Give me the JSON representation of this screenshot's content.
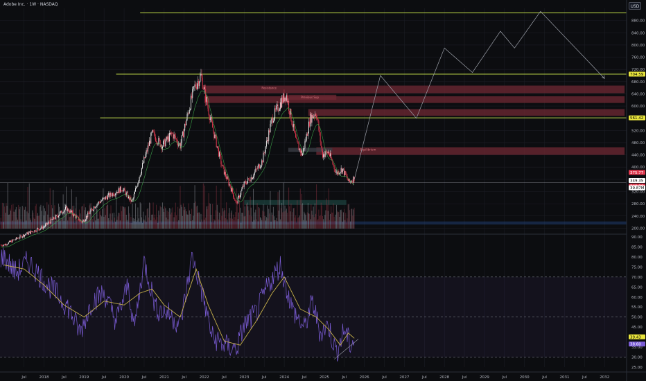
{
  "header": {
    "title": "Adobe Inc. · 1W · NASDAQ",
    "currency_button": "USD"
  },
  "colors": {
    "background": "#0c0d10",
    "grid": "#1b1d24",
    "up": "#e6e6e6",
    "down": "#e0384e",
    "level_line": "#c9e64b",
    "zone": "#6f2833",
    "demand_zone": "#1f4d48",
    "ma_line": "#3fae4c",
    "rsi_line": "#7b5cd6",
    "rsi_ma": "#c8b24a",
    "projection": "#9fa3ac"
  },
  "chart_data": [
    {
      "type": "candlestick",
      "title": "Adobe Inc. · 1W · NASDAQ",
      "ylim": [
        185,
        920
      ],
      "y_ticks": [
        200,
        240,
        280,
        320,
        360,
        400,
        440,
        480,
        520,
        560,
        600,
        640,
        680,
        720,
        760,
        800,
        840,
        880
      ],
      "price_path": [
        {
          "t": 2017.0,
          "p": 145
        },
        {
          "t": 2017.5,
          "p": 178
        },
        {
          "t": 2018.0,
          "p": 205
        },
        {
          "t": 2018.55,
          "p": 265
        },
        {
          "t": 2018.95,
          "p": 220
        },
        {
          "t": 2019.3,
          "p": 278
        },
        {
          "t": 2019.6,
          "p": 305
        },
        {
          "t": 2019.95,
          "p": 330
        },
        {
          "t": 2020.2,
          "p": 285
        },
        {
          "t": 2020.4,
          "p": 380
        },
        {
          "t": 2020.7,
          "p": 510
        },
        {
          "t": 2020.95,
          "p": 470
        },
        {
          "t": 2021.2,
          "p": 510
        },
        {
          "t": 2021.4,
          "p": 470
        },
        {
          "t": 2021.75,
          "p": 660
        },
        {
          "t": 2021.92,
          "p": 699
        },
        {
          "t": 2022.15,
          "p": 560
        },
        {
          "t": 2022.45,
          "p": 400
        },
        {
          "t": 2022.7,
          "p": 320
        },
        {
          "t": 2022.8,
          "p": 280
        },
        {
          "t": 2023.0,
          "p": 345
        },
        {
          "t": 2023.2,
          "p": 370
        },
        {
          "t": 2023.45,
          "p": 420
        },
        {
          "t": 2023.7,
          "p": 560
        },
        {
          "t": 2023.95,
          "p": 620
        },
        {
          "t": 2024.05,
          "p": 638
        },
        {
          "t": 2024.3,
          "p": 480
        },
        {
          "t": 2024.45,
          "p": 440
        },
        {
          "t": 2024.65,
          "p": 560
        },
        {
          "t": 2024.8,
          "p": 580
        },
        {
          "t": 2024.95,
          "p": 440
        },
        {
          "t": 2025.1,
          "p": 450
        },
        {
          "t": 2025.3,
          "p": 380
        },
        {
          "t": 2025.45,
          "p": 395
        },
        {
          "t": 2025.62,
          "p": 349
        },
        {
          "t": 2025.75,
          "p": 365
        }
      ],
      "horizontal_levels": [
        {
          "price": 905,
          "label": ""
        },
        {
          "price": 704.59,
          "label": "704.59"
        },
        {
          "price": 561.42,
          "label": "561.42"
        },
        {
          "price": 349.35,
          "label": ""
        }
      ],
      "zones": [
        {
          "from": 2022.0,
          "to": 2032.5,
          "top": 667,
          "bottom": 642,
          "label": "Resistance"
        },
        {
          "from": 2022.0,
          "to": 2032.5,
          "top": 632,
          "bottom": 610,
          "label": ""
        },
        {
          "from": 2024.1,
          "to": 2025.3,
          "top": 637,
          "bottom": 620,
          "label": "Previous Sup"
        },
        {
          "from": 2024.6,
          "to": 2032.5,
          "top": 590,
          "bottom": 568,
          "label": ""
        },
        {
          "from": 2024.8,
          "to": 2032.5,
          "top": 465,
          "bottom": 440,
          "label": "Equilibrium"
        },
        {
          "from": 2024.1,
          "to": 2025.2,
          "top": 463,
          "bottom": 450,
          "label": ""
        }
      ],
      "projection_path": [
        {
          "t": 2025.75,
          "p": 360
        },
        {
          "t": 2026.4,
          "p": 700
        },
        {
          "t": 2027.3,
          "p": 560
        },
        {
          "t": 2028.0,
          "p": 790
        },
        {
          "t": 2028.7,
          "p": 710
        },
        {
          "t": 2029.4,
          "p": 845
        },
        {
          "t": 2029.75,
          "p": 790
        },
        {
          "t": 2030.4,
          "p": 910
        },
        {
          "t": 2032.0,
          "p": 690
        }
      ],
      "price_labels": [
        {
          "price": 704.59,
          "text": "704.59",
          "bg": "#e8e43c",
          "fg": "#000000"
        },
        {
          "price": 561.42,
          "text": "561.42",
          "bg": "#e8e43c",
          "fg": "#000000"
        },
        {
          "price": 375.77,
          "text": "375.77",
          "bg": "#e0384e",
          "fg": "#ffffff"
        },
        {
          "price": 349.35,
          "text": "349.35",
          "bg": "#ffffff",
          "fg": "#000000"
        },
        {
          "price": 349.36,
          "text": "349.36",
          "bg": "#e0384e",
          "fg": "#ffffff"
        },
        {
          "price": 300,
          "text": "39.87M",
          "bg": "#ffffff",
          "fg": "#000000"
        }
      ]
    },
    {
      "type": "line",
      "title": "",
      "ylim": [
        25,
        90
      ],
      "y_ticks": [
        25,
        30,
        35,
        40,
        45,
        50,
        55,
        60,
        65,
        70,
        75,
        80,
        85,
        90
      ],
      "overbought": 70,
      "middle": 50,
      "oversold": 30,
      "rsi_path": [
        {
          "t": 2017.0,
          "v": 80
        },
        {
          "t": 2017.3,
          "v": 72
        },
        {
          "t": 2017.6,
          "v": 78
        },
        {
          "t": 2018.0,
          "v": 68
        },
        {
          "t": 2018.3,
          "v": 62
        },
        {
          "t": 2018.6,
          "v": 55
        },
        {
          "t": 2018.9,
          "v": 42
        },
        {
          "t": 2019.2,
          "v": 58
        },
        {
          "t": 2019.5,
          "v": 62
        },
        {
          "t": 2019.8,
          "v": 48
        },
        {
          "t": 2020.1,
          "v": 66
        },
        {
          "t": 2020.25,
          "v": 44
        },
        {
          "t": 2020.5,
          "v": 78
        },
        {
          "t": 2020.8,
          "v": 54
        },
        {
          "t": 2021.1,
          "v": 52
        },
        {
          "t": 2021.4,
          "v": 46
        },
        {
          "t": 2021.7,
          "v": 80
        },
        {
          "t": 2021.9,
          "v": 66
        },
        {
          "t": 2022.2,
          "v": 40
        },
        {
          "t": 2022.5,
          "v": 36
        },
        {
          "t": 2022.8,
          "v": 34
        },
        {
          "t": 2023.0,
          "v": 46
        },
        {
          "t": 2023.3,
          "v": 52
        },
        {
          "t": 2023.6,
          "v": 66
        },
        {
          "t": 2023.9,
          "v": 76
        },
        {
          "t": 2024.2,
          "v": 54
        },
        {
          "t": 2024.5,
          "v": 44
        },
        {
          "t": 2024.7,
          "v": 58
        },
        {
          "t": 2024.9,
          "v": 42
        },
        {
          "t": 2025.1,
          "v": 46
        },
        {
          "t": 2025.3,
          "v": 32
        },
        {
          "t": 2025.5,
          "v": 44
        },
        {
          "t": 2025.65,
          "v": 36
        },
        {
          "t": 2025.75,
          "v": 38.6
        }
      ],
      "rsi_ma_path": [
        {
          "t": 2017.0,
          "v": 76
        },
        {
          "t": 2017.5,
          "v": 74
        },
        {
          "t": 2018.0,
          "v": 66
        },
        {
          "t": 2018.5,
          "v": 56
        },
        {
          "t": 2019.0,
          "v": 50
        },
        {
          "t": 2019.5,
          "v": 58
        },
        {
          "t": 2020.0,
          "v": 56
        },
        {
          "t": 2020.4,
          "v": 62
        },
        {
          "t": 2020.7,
          "v": 64
        },
        {
          "t": 2021.0,
          "v": 56
        },
        {
          "t": 2021.4,
          "v": 50
        },
        {
          "t": 2021.8,
          "v": 74
        },
        {
          "t": 2022.1,
          "v": 56
        },
        {
          "t": 2022.5,
          "v": 38
        },
        {
          "t": 2022.9,
          "v": 36
        },
        {
          "t": 2023.3,
          "v": 48
        },
        {
          "t": 2023.7,
          "v": 62
        },
        {
          "t": 2024.0,
          "v": 70
        },
        {
          "t": 2024.4,
          "v": 54
        },
        {
          "t": 2024.8,
          "v": 50
        },
        {
          "t": 2025.1,
          "v": 44
        },
        {
          "t": 2025.4,
          "v": 36
        },
        {
          "t": 2025.6,
          "v": 42
        },
        {
          "t": 2025.75,
          "v": 39.43
        }
      ],
      "value_labels": [
        {
          "value": 39.43,
          "text": "39.43",
          "bg": "#e8e43c",
          "fg": "#000000"
        },
        {
          "value": 38.6,
          "text": "38.60",
          "bg": "#7b5cd6",
          "fg": "#ffffff"
        }
      ]
    }
  ],
  "time_axis": {
    "ticks": [
      {
        "t": 2017.5,
        "label": "Jul"
      },
      {
        "t": 2018.0,
        "label": "2018"
      },
      {
        "t": 2018.5,
        "label": "Jul"
      },
      {
        "t": 2019.0,
        "label": "2019"
      },
      {
        "t": 2019.5,
        "label": "Jul"
      },
      {
        "t": 2020.0,
        "label": "2020"
      },
      {
        "t": 2020.5,
        "label": "Jul"
      },
      {
        "t": 2021.0,
        "label": "2021"
      },
      {
        "t": 2021.5,
        "label": "Jul"
      },
      {
        "t": 2022.0,
        "label": "2022"
      },
      {
        "t": 2022.5,
        "label": "Jul"
      },
      {
        "t": 2023.0,
        "label": "2023"
      },
      {
        "t": 2023.5,
        "label": "Jul"
      },
      {
        "t": 2024.0,
        "label": "2024"
      },
      {
        "t": 2024.5,
        "label": "Jul"
      },
      {
        "t": 2025.0,
        "label": "2025"
      },
      {
        "t": 2025.5,
        "label": "Jul"
      },
      {
        "t": 2026.0,
        "label": "2026"
      },
      {
        "t": 2026.5,
        "label": "Jul"
      },
      {
        "t": 2027.0,
        "label": "2027"
      },
      {
        "t": 2027.5,
        "label": "Jul"
      },
      {
        "t": 2028.0,
        "label": "2028"
      },
      {
        "t": 2028.5,
        "label": "Jul"
      },
      {
        "t": 2029.0,
        "label": "2029"
      },
      {
        "t": 2029.5,
        "label": "Jul"
      },
      {
        "t": 2030.0,
        "label": "2030"
      },
      {
        "t": 2030.5,
        "label": "Jul"
      },
      {
        "t": 2031.0,
        "label": "2031"
      },
      {
        "t": 2031.5,
        "label": "Jul"
      },
      {
        "t": 2032.0,
        "label": "2032"
      }
    ]
  }
}
